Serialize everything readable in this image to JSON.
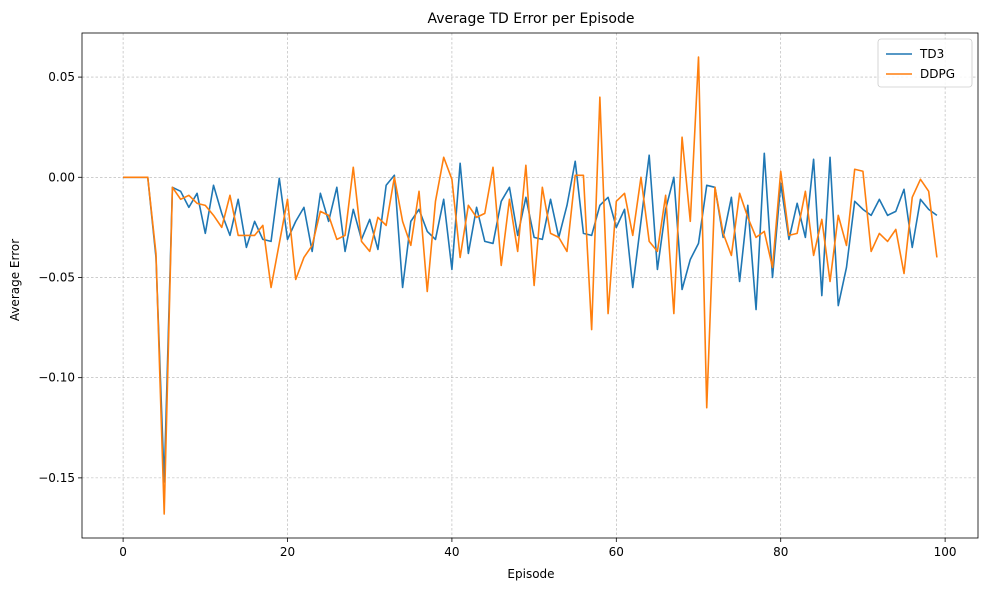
{
  "chart_data": {
    "type": "line",
    "title": "Average TD Error per Episode",
    "xlabel": "Episode",
    "ylabel": "Average Error",
    "xlim": [
      -5,
      104
    ],
    "ylim": [
      -0.18,
      0.072
    ],
    "xticks": [
      0,
      20,
      40,
      60,
      80,
      100
    ],
    "yticks": [
      -0.15,
      -0.1,
      -0.05,
      0.0,
      0.05
    ],
    "xtick_labels": [
      "0",
      "20",
      "40",
      "60",
      "80",
      "100"
    ],
    "ytick_labels": [
      "−0.15",
      "−0.10",
      "−0.05",
      "0.00",
      "0.05"
    ],
    "grid": true,
    "legend_position": "top-right",
    "x": [
      0,
      1,
      2,
      3,
      4,
      5,
      6,
      7,
      8,
      9,
      10,
      11,
      12,
      13,
      14,
      15,
      16,
      17,
      18,
      19,
      20,
      21,
      22,
      23,
      24,
      25,
      26,
      27,
      28,
      29,
      30,
      31,
      32,
      33,
      34,
      35,
      36,
      37,
      38,
      39,
      40,
      41,
      42,
      43,
      44,
      45,
      46,
      47,
      48,
      49,
      50,
      51,
      52,
      53,
      54,
      55,
      56,
      57,
      58,
      59,
      60,
      61,
      62,
      63,
      64,
      65,
      66,
      67,
      68,
      69,
      70,
      71,
      72,
      73,
      74,
      75,
      76,
      77,
      78,
      79,
      80,
      81,
      82,
      83,
      84,
      85,
      86,
      87,
      88,
      89,
      90,
      91,
      92,
      93,
      94,
      95,
      96,
      97,
      98,
      99
    ],
    "series": [
      {
        "name": "TD3",
        "color": "#1f77b4",
        "values": [
          0.0,
          0.0,
          0.0,
          0.0,
          -0.04,
          -0.152,
          -0.005,
          -0.007,
          -0.015,
          -0.008,
          -0.028,
          -0.004,
          -0.018,
          -0.029,
          -0.011,
          -0.035,
          -0.022,
          -0.031,
          -0.032,
          -0.0005,
          -0.031,
          -0.022,
          -0.015,
          -0.037,
          -0.008,
          -0.022,
          -0.005,
          -0.037,
          -0.016,
          -0.031,
          -0.021,
          -0.036,
          -0.004,
          0.001,
          -0.055,
          -0.022,
          -0.016,
          -0.027,
          -0.031,
          -0.011,
          -0.046,
          0.007,
          -0.038,
          -0.015,
          -0.032,
          -0.033,
          -0.012,
          -0.005,
          -0.029,
          -0.01,
          -0.03,
          -0.031,
          -0.011,
          -0.03,
          -0.014,
          0.008,
          -0.028,
          -0.029,
          -0.014,
          -0.01,
          -0.025,
          -0.016,
          -0.055,
          -0.022,
          0.011,
          -0.046,
          -0.016,
          0.0,
          -0.056,
          -0.041,
          -0.033,
          -0.004,
          -0.005,
          -0.03,
          -0.01,
          -0.052,
          -0.014,
          -0.066,
          0.012,
          -0.05,
          -0.003,
          -0.031,
          -0.013,
          -0.03,
          0.009,
          -0.059,
          0.01,
          -0.064,
          -0.045,
          -0.012,
          -0.016,
          -0.019,
          -0.011,
          -0.019,
          -0.017,
          -0.006,
          -0.035,
          -0.011,
          -0.016,
          -0.019
        ]
      },
      {
        "name": "DDPG",
        "color": "#ff7f0e",
        "values": [
          0.0,
          0.0,
          0.0,
          0.0,
          -0.038,
          -0.168,
          -0.005,
          -0.011,
          -0.009,
          -0.013,
          -0.014,
          -0.019,
          -0.025,
          -0.009,
          -0.029,
          -0.029,
          -0.029,
          -0.024,
          -0.055,
          -0.033,
          -0.011,
          -0.051,
          -0.04,
          -0.034,
          -0.017,
          -0.019,
          -0.031,
          -0.029,
          0.005,
          -0.032,
          -0.037,
          -0.02,
          -0.024,
          0.0,
          -0.022,
          -0.034,
          -0.007,
          -0.057,
          -0.012,
          0.01,
          -0.001,
          -0.04,
          -0.014,
          -0.02,
          -0.018,
          0.005,
          -0.044,
          -0.011,
          -0.037,
          0.006,
          -0.054,
          -0.005,
          -0.028,
          -0.03,
          -0.037,
          0.001,
          0.001,
          -0.076,
          0.04,
          -0.068,
          -0.012,
          -0.008,
          -0.029,
          0.0,
          -0.032,
          -0.037,
          -0.009,
          -0.068,
          0.02,
          -0.022,
          0.06,
          -0.115,
          -0.005,
          -0.028,
          -0.039,
          -0.008,
          -0.02,
          -0.03,
          -0.027,
          -0.045,
          0.003,
          -0.029,
          -0.028,
          -0.007,
          -0.039,
          -0.021,
          -0.052,
          -0.019,
          -0.034,
          0.004,
          0.003,
          -0.037,
          -0.028,
          -0.032,
          -0.026,
          -0.048,
          -0.01,
          -0.001,
          -0.007,
          -0.04
        ]
      }
    ]
  }
}
